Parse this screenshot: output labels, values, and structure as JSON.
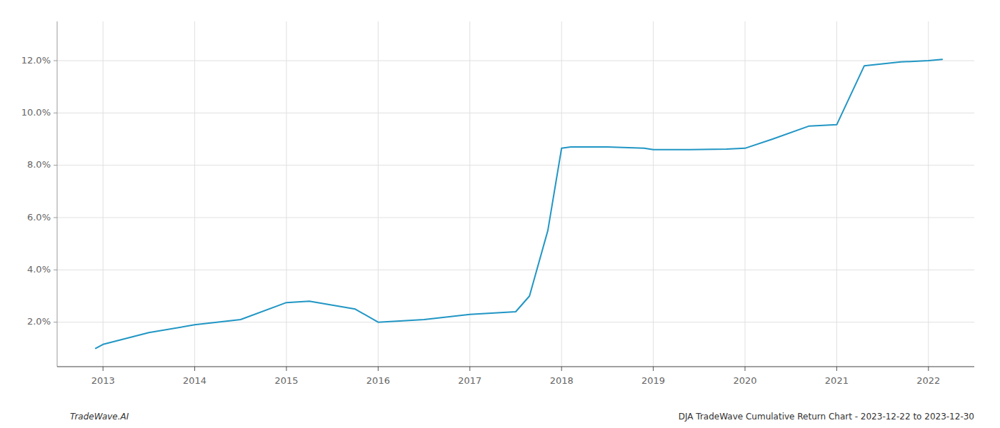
{
  "chart_data": {
    "type": "line",
    "x": [
      2012.92,
      2013.0,
      2013.5,
      2014.0,
      2014.5,
      2015.0,
      2015.25,
      2015.75,
      2016.0,
      2016.5,
      2017.0,
      2017.5,
      2017.65,
      2017.85,
      2018.0,
      2018.1,
      2018.5,
      2018.9,
      2019.0,
      2019.4,
      2019.8,
      2020.0,
      2020.3,
      2020.7,
      2021.0,
      2021.3,
      2021.7,
      2022.0,
      2022.15
    ],
    "values": [
      1.0,
      1.15,
      1.6,
      1.9,
      2.1,
      2.75,
      2.8,
      2.5,
      2.0,
      2.1,
      2.3,
      2.4,
      3.0,
      5.5,
      8.65,
      8.7,
      8.7,
      8.65,
      8.6,
      8.6,
      8.62,
      8.65,
      9.0,
      9.5,
      9.55,
      11.8,
      11.95,
      12.0,
      12.05
    ],
    "color": "#2196c4",
    "xlim": [
      2012.5,
      2022.5
    ],
    "ylim": [
      0.3,
      13.5
    ],
    "xticks": [
      2013,
      2014,
      2015,
      2016,
      2017,
      2018,
      2019,
      2020,
      2021,
      2022
    ],
    "yticks": [
      {
        "value": 2.0,
        "label": "2.0%"
      },
      {
        "value": 4.0,
        "label": "4.0%"
      },
      {
        "value": 6.0,
        "label": "6.0%"
      },
      {
        "value": 8.0,
        "label": "8.0%"
      },
      {
        "value": 10.0,
        "label": "10.0%"
      },
      {
        "value": 12.0,
        "label": "12.0%"
      }
    ],
    "grid": true,
    "annotations": [
      "TradeWave.AI",
      "DJA TradeWave Cumulative Return Chart - 2023-12-22 to 2023-12-30"
    ]
  }
}
